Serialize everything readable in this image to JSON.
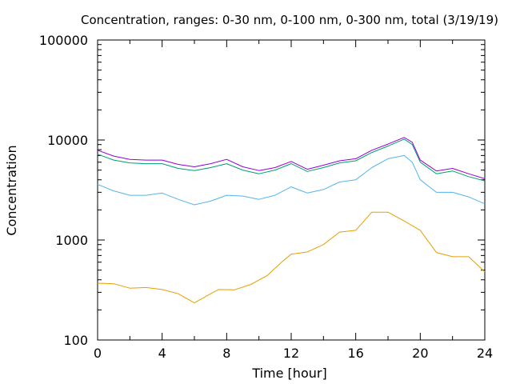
{
  "chart_data": {
    "type": "line",
    "title": "Concentration, ranges: 0-30 nm, 0-100 nm, 0-300 nm, total (3/19/19)",
    "xlabel": "Time [hour]",
    "ylabel": "Concentration",
    "xlim": [
      0,
      24
    ],
    "ylim": [
      100,
      100000
    ],
    "yscale": "log",
    "x_ticks": [
      0,
      4,
      8,
      12,
      16,
      20,
      24
    ],
    "x_tick_labels": [
      "0",
      "4",
      "8",
      "12",
      "16",
      "20",
      "24"
    ],
    "y_ticks": [
      100,
      1000,
      10000,
      100000
    ],
    "y_tick_labels": [
      "100",
      "1000",
      "10000",
      "100000"
    ],
    "grid": false,
    "legend": "none",
    "series": [
      {
        "color": "#e69f00",
        "points": [
          [
            0,
            370
          ],
          [
            1,
            365
          ],
          [
            2,
            330
          ],
          [
            3,
            335
          ],
          [
            4,
            320
          ],
          [
            5,
            290
          ],
          [
            6,
            235
          ],
          [
            7,
            290
          ],
          [
            7.5,
            320
          ],
          [
            8.5,
            318
          ],
          [
            9.5,
            360
          ],
          [
            10.5,
            440
          ],
          [
            11.5,
            620
          ],
          [
            12,
            720
          ],
          [
            13,
            760
          ],
          [
            14,
            900
          ],
          [
            15,
            1200
          ],
          [
            16,
            1250
          ],
          [
            17,
            1900
          ],
          [
            18,
            1900
          ],
          [
            19,
            1550
          ],
          [
            20,
            1250
          ],
          [
            21,
            750
          ],
          [
            22,
            680
          ],
          [
            23,
            680
          ],
          [
            24,
            480
          ]
        ]
      },
      {
        "color": "#56b4e9",
        "points": [
          [
            0,
            3600
          ],
          [
            1,
            3100
          ],
          [
            2,
            2800
          ],
          [
            3,
            2800
          ],
          [
            4,
            2950
          ],
          [
            5,
            2550
          ],
          [
            6,
            2250
          ],
          [
            7,
            2450
          ],
          [
            8,
            2800
          ],
          [
            9,
            2750
          ],
          [
            10,
            2550
          ],
          [
            11,
            2800
          ],
          [
            12,
            3400
          ],
          [
            13,
            2950
          ],
          [
            14,
            3200
          ],
          [
            15,
            3800
          ],
          [
            16,
            4000
          ],
          [
            17,
            5300
          ],
          [
            18,
            6500
          ],
          [
            19,
            7000
          ],
          [
            19.5,
            6000
          ],
          [
            20,
            4000
          ],
          [
            21,
            3000
          ],
          [
            22,
            3000
          ],
          [
            23,
            2700
          ],
          [
            24,
            2300
          ]
        ]
      },
      {
        "color": "#009e73",
        "points": [
          [
            0,
            7200
          ],
          [
            1,
            6300
          ],
          [
            2,
            5900
          ],
          [
            3,
            5800
          ],
          [
            4,
            5800
          ],
          [
            5,
            5200
          ],
          [
            6,
            4950
          ],
          [
            7,
            5300
          ],
          [
            8,
            5800
          ],
          [
            9,
            5000
          ],
          [
            10,
            4600
          ],
          [
            11,
            5000
          ],
          [
            12,
            5800
          ],
          [
            13,
            4850
          ],
          [
            14,
            5300
          ],
          [
            15,
            5900
          ],
          [
            16,
            6200
          ],
          [
            17,
            7500
          ],
          [
            18,
            8700
          ],
          [
            19,
            10200
          ],
          [
            19.5,
            9000
          ],
          [
            20,
            6000
          ],
          [
            21,
            4600
          ],
          [
            22,
            4900
          ],
          [
            23,
            4300
          ],
          [
            24,
            3900
          ]
        ]
      },
      {
        "color": "#9400d3",
        "points": [
          [
            0,
            7900
          ],
          [
            1,
            6900
          ],
          [
            2,
            6400
          ],
          [
            3,
            6300
          ],
          [
            4,
            6300
          ],
          [
            5,
            5700
          ],
          [
            6,
            5400
          ],
          [
            7,
            5800
          ],
          [
            8,
            6400
          ],
          [
            9,
            5400
          ],
          [
            10,
            4950
          ],
          [
            11,
            5300
          ],
          [
            12,
            6100
          ],
          [
            13,
            5100
          ],
          [
            14,
            5600
          ],
          [
            15,
            6200
          ],
          [
            16,
            6500
          ],
          [
            17,
            7900
          ],
          [
            18,
            9100
          ],
          [
            19,
            10600
          ],
          [
            19.5,
            9500
          ],
          [
            20,
            6300
          ],
          [
            21,
            4900
          ],
          [
            22,
            5200
          ],
          [
            23,
            4600
          ],
          [
            24,
            4100
          ]
        ]
      }
    ]
  }
}
